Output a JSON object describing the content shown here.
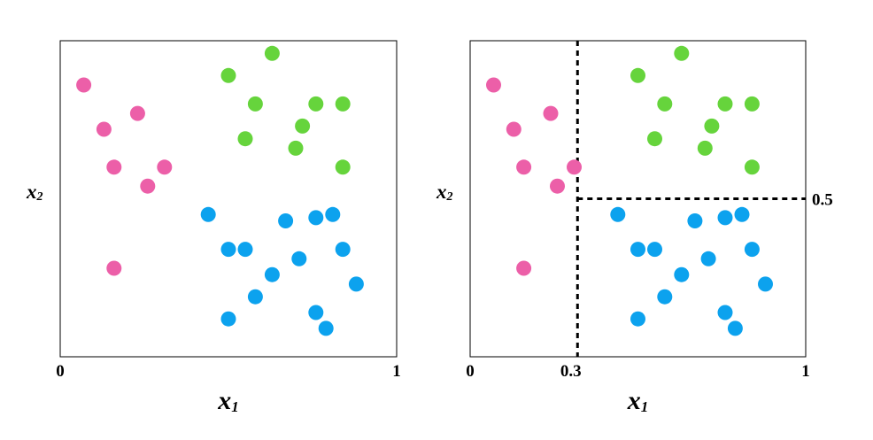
{
  "chart_data": [
    {
      "type": "scatter",
      "title": "",
      "xlabel": {
        "base": "x",
        "sub": "1"
      },
      "ylabel": {
        "base": "x",
        "sub": "2"
      },
      "xlim": [
        0,
        1
      ],
      "ylim": [
        0,
        1
      ],
      "x_ticks": [
        "0",
        "1"
      ],
      "grid": false,
      "series": [
        {
          "color": "#ec5fa8",
          "points": [
            [
              0.07,
              0.86
            ],
            [
              0.13,
              0.72
            ],
            [
              0.23,
              0.77
            ],
            [
              0.16,
              0.6
            ],
            [
              0.31,
              0.6
            ],
            [
              0.26,
              0.54
            ],
            [
              0.16,
              0.28
            ]
          ]
        },
        {
          "color": "#66d43c",
          "points": [
            [
              0.63,
              0.96
            ],
            [
              0.5,
              0.89
            ],
            [
              0.58,
              0.8
            ],
            [
              0.76,
              0.8
            ],
            [
              0.84,
              0.8
            ],
            [
              0.72,
              0.73
            ],
            [
              0.55,
              0.69
            ],
            [
              0.7,
              0.66
            ],
            [
              0.84,
              0.6
            ]
          ]
        },
        {
          "color": "#0ca2ee",
          "points": [
            [
              0.44,
              0.45
            ],
            [
              0.67,
              0.43
            ],
            [
              0.76,
              0.44
            ],
            [
              0.81,
              0.45
            ],
            [
              0.5,
              0.34
            ],
            [
              0.55,
              0.34
            ],
            [
              0.71,
              0.31
            ],
            [
              0.84,
              0.34
            ],
            [
              0.63,
              0.26
            ],
            [
              0.88,
              0.23
            ],
            [
              0.58,
              0.19
            ],
            [
              0.76,
              0.14
            ],
            [
              0.5,
              0.12
            ],
            [
              0.79,
              0.09
            ]
          ]
        }
      ]
    },
    {
      "type": "scatter",
      "title": "",
      "xlabel": {
        "base": "x",
        "sub": "1"
      },
      "ylabel": {
        "base": "x",
        "sub": "2"
      },
      "xlim": [
        0,
        1
      ],
      "ylim": [
        0,
        1
      ],
      "x_ticks": [
        "0",
        "0.3",
        "1"
      ],
      "grid": false,
      "split_lines": [
        {
          "orientation": "vertical",
          "x": 0.32,
          "y_range": [
            0,
            1
          ],
          "style": "dashed"
        },
        {
          "orientation": "horizontal",
          "y": 0.5,
          "x_range": [
            0.32,
            1
          ],
          "style": "dashed",
          "label": "0.5"
        }
      ],
      "series": [
        {
          "color": "#ec5fa8",
          "points": [
            [
              0.07,
              0.86
            ],
            [
              0.13,
              0.72
            ],
            [
              0.24,
              0.77
            ],
            [
              0.16,
              0.6
            ],
            [
              0.31,
              0.6
            ],
            [
              0.26,
              0.54
            ],
            [
              0.16,
              0.28
            ]
          ]
        },
        {
          "color": "#66d43c",
          "points": [
            [
              0.63,
              0.96
            ],
            [
              0.5,
              0.89
            ],
            [
              0.58,
              0.8
            ],
            [
              0.76,
              0.8
            ],
            [
              0.84,
              0.8
            ],
            [
              0.72,
              0.73
            ],
            [
              0.55,
              0.69
            ],
            [
              0.7,
              0.66
            ],
            [
              0.84,
              0.6
            ]
          ]
        },
        {
          "color": "#0ca2ee",
          "points": [
            [
              0.44,
              0.45
            ],
            [
              0.67,
              0.43
            ],
            [
              0.76,
              0.44
            ],
            [
              0.81,
              0.45
            ],
            [
              0.5,
              0.34
            ],
            [
              0.55,
              0.34
            ],
            [
              0.71,
              0.31
            ],
            [
              0.84,
              0.34
            ],
            [
              0.63,
              0.26
            ],
            [
              0.88,
              0.23
            ],
            [
              0.58,
              0.19
            ],
            [
              0.76,
              0.14
            ],
            [
              0.5,
              0.12
            ],
            [
              0.79,
              0.09
            ]
          ]
        }
      ]
    }
  ]
}
